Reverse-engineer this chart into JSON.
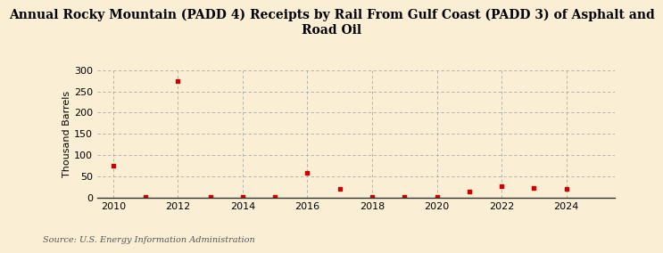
{
  "title": "Annual Rocky Mountain (PADD 4) Receipts by Rail From Gulf Coast (PADD 3) of Asphalt and\nRoad Oil",
  "ylabel": "Thousand Barrels",
  "source": "Source: U.S. Energy Information Administration",
  "background_color": "#faefd4",
  "marker_color": "#cc0000",
  "grid_color": "#aaaaaa",
  "years": [
    2010,
    2011,
    2012,
    2013,
    2014,
    2015,
    2016,
    2017,
    2018,
    2019,
    2020,
    2021,
    2022,
    2023,
    2024
  ],
  "values": [
    75,
    2,
    275,
    2,
    2,
    2,
    58,
    20,
    2,
    2,
    2,
    15,
    27,
    22,
    20
  ],
  "xlim": [
    2009.5,
    2025.5
  ],
  "ylim": [
    0,
    300
  ],
  "yticks": [
    0,
    50,
    100,
    150,
    200,
    250,
    300
  ],
  "xticks": [
    2010,
    2012,
    2014,
    2016,
    2018,
    2020,
    2022,
    2024
  ],
  "title_fontsize": 10,
  "ylabel_fontsize": 8,
  "tick_fontsize": 8,
  "source_fontsize": 7
}
